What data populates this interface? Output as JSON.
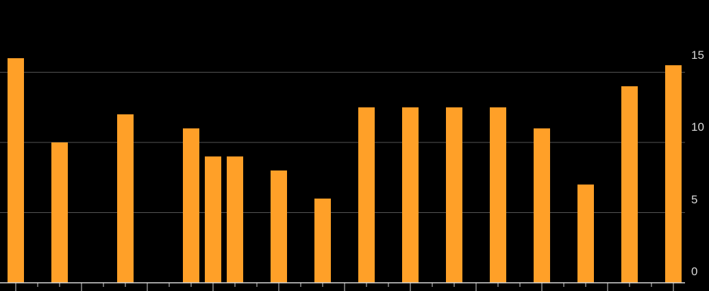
{
  "chart_data": {
    "type": "bar",
    "categories": [
      "",
      "",
      "",
      "",
      "",
      "",
      "",
      "",
      "",
      "",
      "",
      "",
      "",
      "",
      "",
      "",
      "",
      "",
      "",
      "",
      "",
      "",
      "",
      "",
      "",
      "",
      "",
      "",
      "",
      "",
      ""
    ],
    "values": [
      16,
      null,
      10,
      null,
      null,
      12,
      null,
      null,
      11,
      9,
      9,
      null,
      8,
      null,
      6,
      null,
      12.5,
      null,
      12.5,
      null,
      12.5,
      null,
      12.5,
      null,
      11,
      null,
      7,
      null,
      14,
      null,
      15.5
    ],
    "ylim": [
      0,
      18
    ],
    "yticks": [
      0,
      5,
      10,
      15
    ],
    "ytick_labels": [
      "0",
      "5",
      "10",
      "15"
    ],
    "y_axis_side": "right",
    "grid": true,
    "colors": {
      "background": "#000000",
      "bar": "#FFA028",
      "grid": "#555555",
      "axis": "#d9d9d9",
      "text": "#d9d9d9"
    }
  }
}
